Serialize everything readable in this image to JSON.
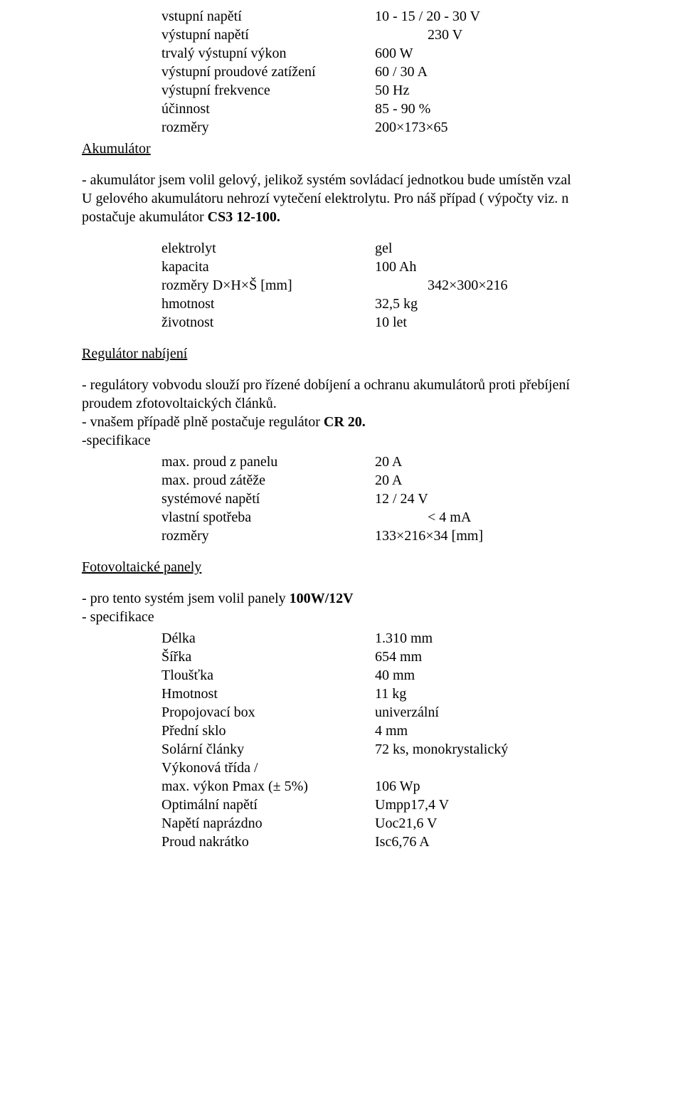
{
  "sec_top": {
    "rows": [
      {
        "label": "vstupní napětí",
        "value": "10 - 15 / 20 - 30  V"
      },
      {
        "label": "výstupní napětí",
        "value": "230 V",
        "indent": true
      },
      {
        "label": "trvalý výstupní výkon",
        "value": "600 W"
      },
      {
        "label": "výstupní proudové zatížení",
        "value": "60 / 30 A"
      },
      {
        "label": "výstupní frekvence",
        "value": "50 Hz"
      },
      {
        "label": "účinnost",
        "value": "85 - 90 %"
      },
      {
        "label": "rozměry",
        "value": "200×173×65"
      }
    ]
  },
  "aku": {
    "head": "Akumulátor",
    "para1a": "- akumulátor jsem volil gelový, jelikož systém sovládací jednotkou bude umístěn vzal",
    "para1b": "U gelového akumulátoru nehrozí vytečení elektrolytu. Pro náš případ ( výpočty viz. n",
    "para1c_pre": "postačuje akumulátor ",
    "para1c_bold": "CS3 12-100.",
    "rows": [
      {
        "label": "elektrolyt",
        "value": "gel"
      },
      {
        "label": "kapacita",
        "value": "100 Ah"
      },
      {
        "label": "rozměry D×H×Š [mm]",
        "value": "342×300×216",
        "indent": true
      },
      {
        "label": "hmotnost",
        "value": "32,5 kg"
      },
      {
        "label": "životnost",
        "value": "10 let"
      }
    ]
  },
  "reg": {
    "head": "Regulátor nabíjení",
    "p1": "- regulátory vobvodu slouží pro řízené dobíjení a ochranu akumulátorů proti přebíjení",
    "p2": "proudem zfotovoltaických článků.",
    "p3_pre": "- vnašem případě plně postačuje regulátor ",
    "p3_bold": "CR 20.",
    "p4": "-specifikace",
    "rows": [
      {
        "label": "max. proud z panelu",
        "value": "20 A"
      },
      {
        "label": "max. proud zátěže",
        "value": "20 A"
      },
      {
        "label": "systémové napětí",
        "value": "12 / 24 V"
      },
      {
        "label": "vlastní spotřeba",
        "value": "< 4 mA",
        "indent": true
      },
      {
        "label": "rozměry",
        "value": "133×216×34 [mm]"
      }
    ]
  },
  "pv": {
    "head": "Fotovoltaické panely",
    "p1_pre": "- pro tento systém jsem volil panely ",
    "p1_bold": "100W/12V",
    "p2": "- specifikace",
    "rows": [
      {
        "label": "Délka",
        "value": "1.310 mm"
      },
      {
        "label": "Šířka",
        "value": "654 mm"
      },
      {
        "label": "Tloušťka",
        "value": "40 mm"
      },
      {
        "label": "Hmotnost",
        "value": "11 kg"
      },
      {
        "label": "Propojovací box",
        "value": "univerzální"
      },
      {
        "label": "Přední sklo",
        "value": "4 mm"
      },
      {
        "label": "Solární články",
        "value": "72 ks, monokrystalický"
      },
      {
        "label": "Výkonová třída /",
        "value": ""
      },
      {
        "label": "max. výkon Pmax (± 5%)",
        "value": "106 Wp"
      },
      {
        "label": "Optimální napětí",
        "value": "Umpp17,4 V"
      },
      {
        "label": "Napětí naprázdno",
        "value": "Uoc21,6 V"
      },
      {
        "label": "Proud nakrátko",
        "value": "Isc6,76 A"
      }
    ]
  }
}
